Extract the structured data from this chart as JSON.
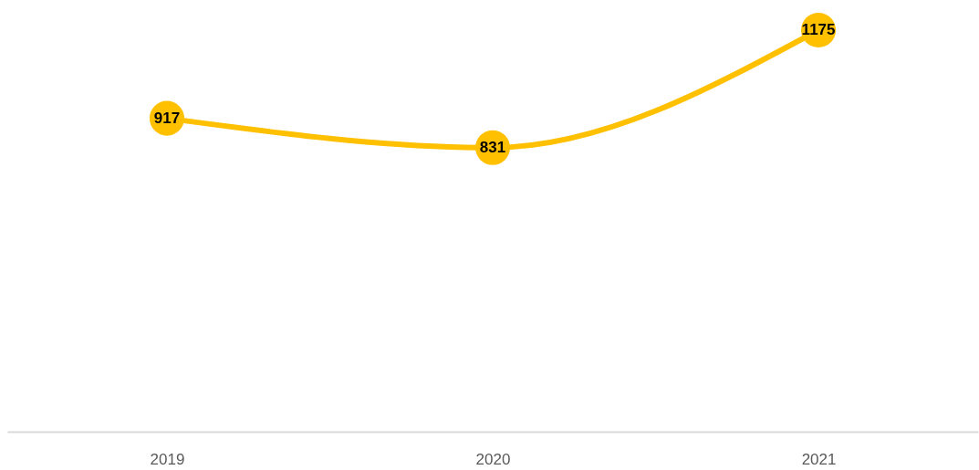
{
  "chart_data": {
    "type": "line",
    "categories": [
      "2019",
      "2020",
      "2021"
    ],
    "series": [
      {
        "color": "#ffc000",
        "values": [
          917,
          831,
          1175
        ]
      }
    ],
    "data_labels": true,
    "marker": "circle",
    "line_style": "solid",
    "grid": false,
    "legend": false,
    "tick_labels": "x"
  }
}
